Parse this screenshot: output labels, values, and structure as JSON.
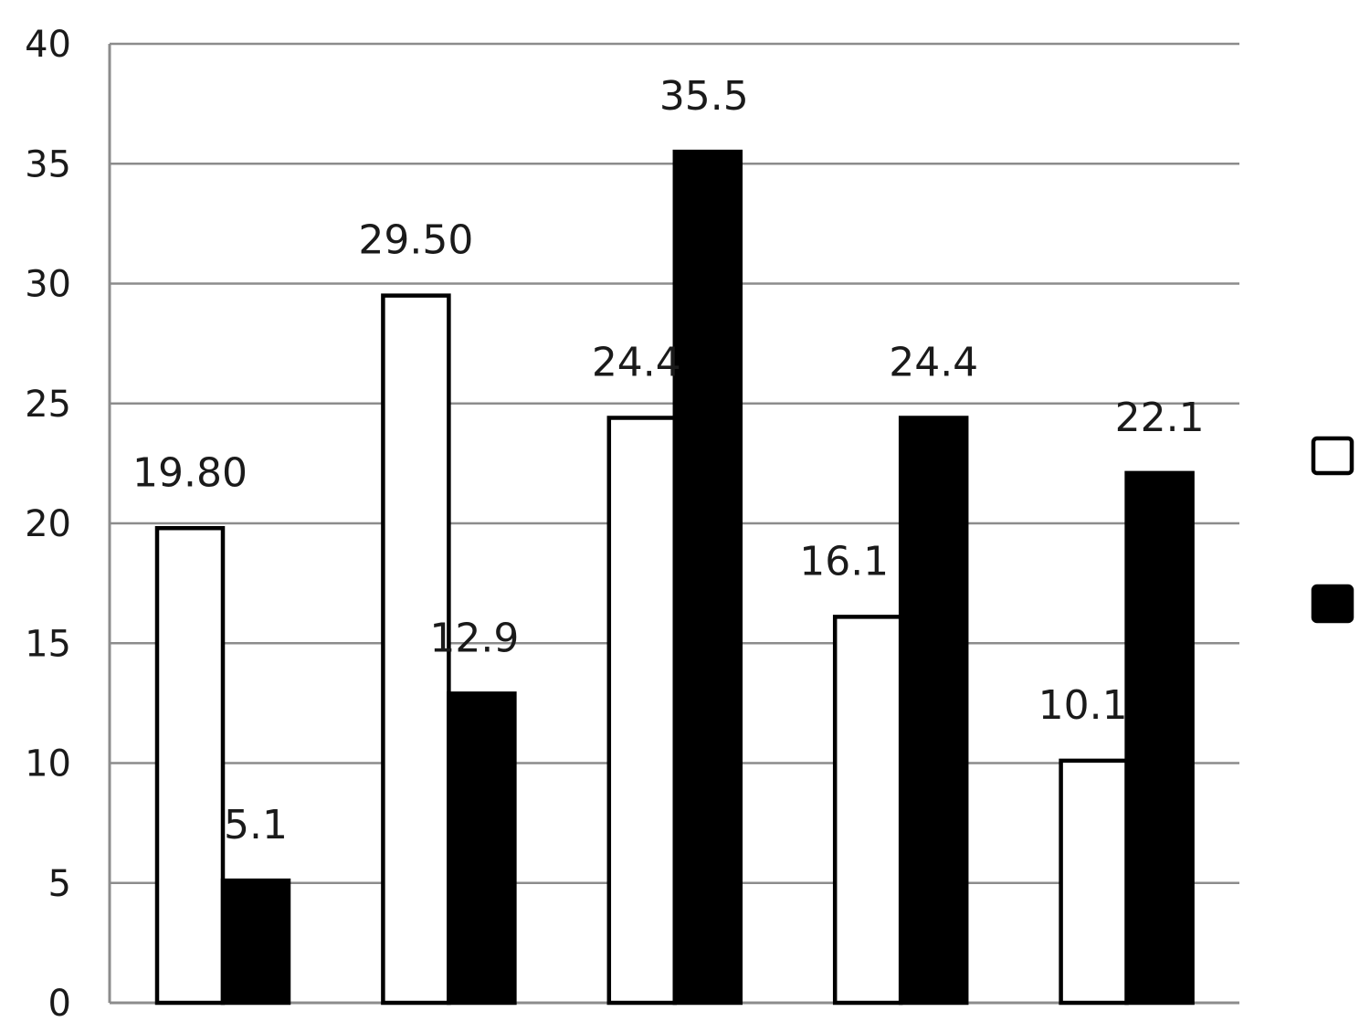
{
  "chart_data": {
    "type": "bar",
    "title": "",
    "xlabel": "",
    "ylabel": "",
    "ylim": [
      0,
      40
    ],
    "yticks": [
      0,
      5,
      10,
      15,
      20,
      25,
      30,
      35,
      40
    ],
    "grid": true,
    "legend": "right",
    "categories": [
      "",
      "",
      "",
      "",
      ""
    ],
    "series": [
      {
        "color": "#ffffff",
        "stroke": "#000000",
        "values": [
          19.8,
          29.5,
          24.4,
          16.1,
          10.1
        ],
        "labels": [
          "19.80",
          "29.50",
          "24.4",
          "16.1",
          "10.1"
        ]
      },
      {
        "color": "#000000",
        "stroke": "#000000",
        "values": [
          5.1,
          12.9,
          35.5,
          24.4,
          22.1
        ],
        "labels": [
          "5.1",
          "12.9",
          "35.5",
          "24.4",
          "22.1"
        ]
      }
    ]
  }
}
